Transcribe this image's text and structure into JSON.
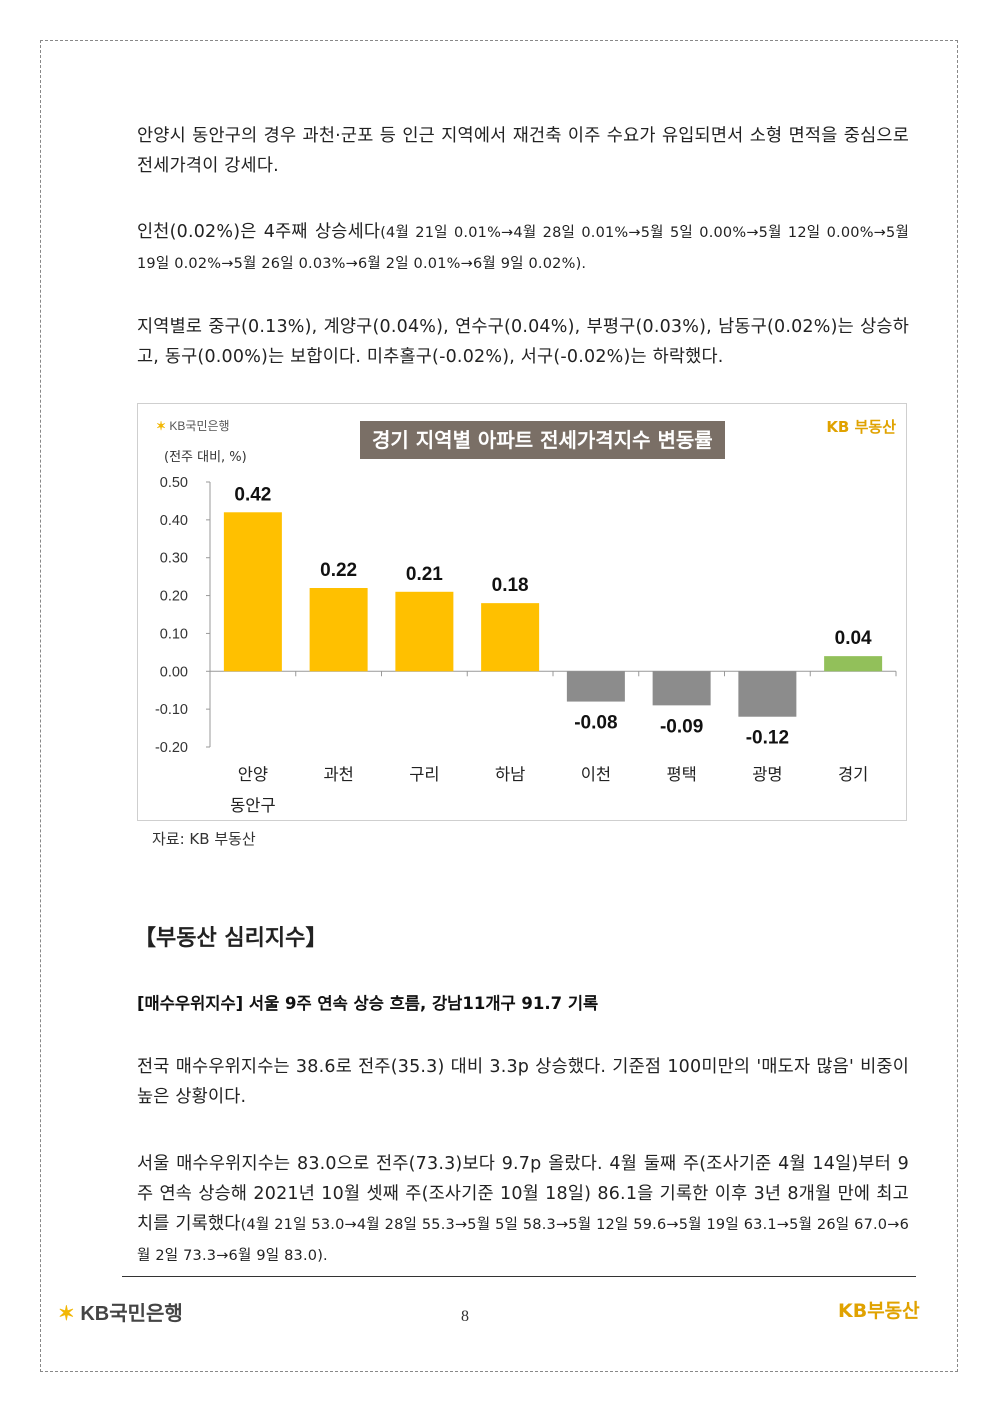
{
  "paragraphs": {
    "p1": "안양시 동안구의 경우 과천·군포 등 인근 지역에서 재건축 이주 수요가 유입되면서 소형 면적을 중심으로 전세가격이 강세다.",
    "p2_main": "인천(0.02%)은 4주째 상승세다",
    "p2_small": "(4월 21일 0.01%→4월 28일 0.01%→5월 5일 0.00%→5월 12일 0.00%→5월 19일 0.02%→5월 26일 0.03%→6월 2일 0.01%→6월 9일 0.02%).",
    "p3": "지역별로 중구(0.13%), 계양구(0.04%), 연수구(0.04%), 부평구(0.03%), 남동구(0.02%)는 상승하고, 동구(0.00%)는 보합이다. 미추홀구(-0.02%), 서구(-0.02%)는 하락했다.",
    "p4": "전국 매수우위지수는 38.6로 전주(35.3) 대비 3.3p 상승했다. 기준점 100미만의 '매도자 많음' 비중이 높은 상황이다.",
    "p5_main": "서울 매수우위지수는 83.0으로 전주(73.3)보다 9.7p 올랐다. 4월 둘째 주(조사기준 4월 14일)부터 9주 연속 상승해 2021년 10월 셋째 주(조사기준 10월 18일) 86.1을 기록한 이후 3년 8개월 만에 최고치를 기록했다",
    "p5_small": "(4월 21일 53.0→4월 28일 55.3→5월 5일 58.3→5월 12일 59.6→5월 19일 63.1→5월 26일 67.0→6월 2일 73.3→6월 9일 83.0)."
  },
  "chart": {
    "logo_text": "KB국민은행",
    "brand": "KB 부동산",
    "unit": "(전주 대비, %)",
    "source": "자료: KB 부동산"
  },
  "chart_data": {
    "type": "bar",
    "title": "경기 지역별 아파트 전세가격지수 변동률",
    "categories": [
      "안양\n동안구",
      "과천",
      "구리",
      "하남",
      "이천",
      "평택",
      "광명",
      "경기"
    ],
    "values": [
      0.42,
      0.22,
      0.21,
      0.18,
      -0.08,
      -0.09,
      -0.12,
      0.04
    ],
    "value_labels": [
      "0.42",
      "0.22",
      "0.21",
      "0.18",
      "-0.08",
      "-0.09",
      "-0.12",
      "0.04"
    ],
    "ylim": [
      -0.2,
      0.5
    ],
    "yticks": [
      "0.50",
      "0.40",
      "0.30",
      "0.20",
      "0.10",
      "0.00",
      "-0.10",
      "-0.20"
    ],
    "ytick_values": [
      0.5,
      0.4,
      0.3,
      0.2,
      0.1,
      0.0,
      -0.1,
      -0.2
    ],
    "colors": {
      "positive": "#ffc000",
      "negative": "#8c8c8c",
      "total": "#92c05a"
    },
    "grid": false
  },
  "section": {
    "heading": "【부동산 심리지수】",
    "subheading": "[매수우위지수] 서울 9주 연속 상승 흐름, 강남11개구 91.7 기록"
  },
  "footer": {
    "logo_text": "KB국민은행",
    "page_number": "8",
    "brand": "KB부동산"
  }
}
